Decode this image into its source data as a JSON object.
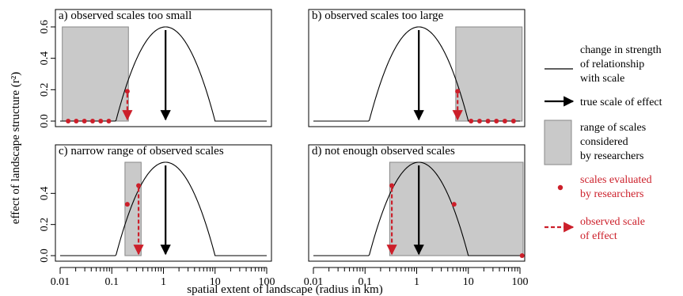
{
  "figure": {
    "ylabel": "effect of landscape structure (r²)",
    "xlabel": "spatial extent of landscape (radius in km)",
    "x_tick_labels": [
      "0.01",
      "0.1",
      "1",
      "10",
      "100"
    ],
    "y_tick_labels": [
      "0.0",
      "0.2",
      "0.4",
      "0.6"
    ]
  },
  "colors": {
    "curve": "#000000",
    "shade_fill": "#c9c9c9",
    "shade_stroke": "#888888",
    "red": "#cc1f2a"
  },
  "legend": {
    "curve": [
      "change in strength",
      "of relationship",
      "with scale"
    ],
    "true_scale": "true scale of effect",
    "range": [
      "range of scales",
      "considered",
      "by researchers"
    ],
    "points": [
      "scales evaluated",
      "by researchers"
    ],
    "observed": [
      "observed scale",
      "of effect"
    ]
  },
  "chart_data": [
    {
      "type": "line",
      "title": "a) observed scales too small",
      "x_scale": "log",
      "xlim": [
        0.01,
        100
      ],
      "ylim": [
        0,
        0.6
      ],
      "curve": {
        "x": [
          0.01,
          0.12,
          1.1,
          10,
          100
        ],
        "y": [
          0,
          0,
          0.6,
          0,
          0
        ],
        "shape": "parabolic on log x between 0.12 and 10"
      },
      "true_scale": 1.1,
      "range_considered": [
        0.011,
        0.21
      ],
      "scales_evaluated": {
        "x": [
          0.0143,
          0.0205,
          0.0295,
          0.0425,
          0.061,
          0.0875,
          0.2
        ],
        "y": [
          0,
          0,
          0,
          0,
          0,
          0,
          0.19
        ]
      },
      "observed_scale": 0.2
    },
    {
      "type": "line",
      "title": "b) observed scales too large",
      "x_scale": "log",
      "xlim": [
        0.01,
        100
      ],
      "ylim": [
        0,
        0.6
      ],
      "curve": {
        "x": [
          0.01,
          0.12,
          1.1,
          10,
          100
        ],
        "y": [
          0,
          0,
          0.6,
          0,
          0
        ]
      },
      "true_scale": 1.1,
      "range_considered": [
        5.7,
        110
      ],
      "scales_evaluated": {
        "x": [
          6.2,
          11.3,
          16.5,
          24,
          35,
          51,
          75
        ],
        "y": [
          0.19,
          0,
          0,
          0,
          0,
          0,
          0
        ]
      },
      "observed_scale": 6.2
    },
    {
      "type": "line",
      "title": "c) narrow range of observed scales",
      "x_scale": "log",
      "xlim": [
        0.01,
        100
      ],
      "ylim": [
        0,
        0.6
      ],
      "curve": {
        "x": [
          0.01,
          0.12,
          1.1,
          10,
          100
        ],
        "y": [
          0,
          0,
          0.6,
          0,
          0
        ]
      },
      "true_scale": 1.1,
      "range_considered": [
        0.18,
        0.37
      ],
      "scales_evaluated": {
        "x": [
          0.2,
          0.33
        ],
        "y": [
          0.33,
          0.45
        ]
      },
      "observed_scale": 0.33
    },
    {
      "type": "line",
      "title": "d) not enough observed scales",
      "x_scale": "log",
      "xlim": [
        0.01,
        100
      ],
      "ylim": [
        0,
        0.6
      ],
      "curve": {
        "x": [
          0.01,
          0.12,
          1.1,
          10,
          100
        ],
        "y": [
          0,
          0,
          0.6,
          0,
          0
        ]
      },
      "true_scale": 1.1,
      "range_considered": [
        0.3,
        115
      ],
      "scales_evaluated": {
        "x": [
          0.33,
          5.3,
          110
        ],
        "y": [
          0.45,
          0.33,
          0
        ]
      },
      "observed_scale": 0.33
    }
  ]
}
